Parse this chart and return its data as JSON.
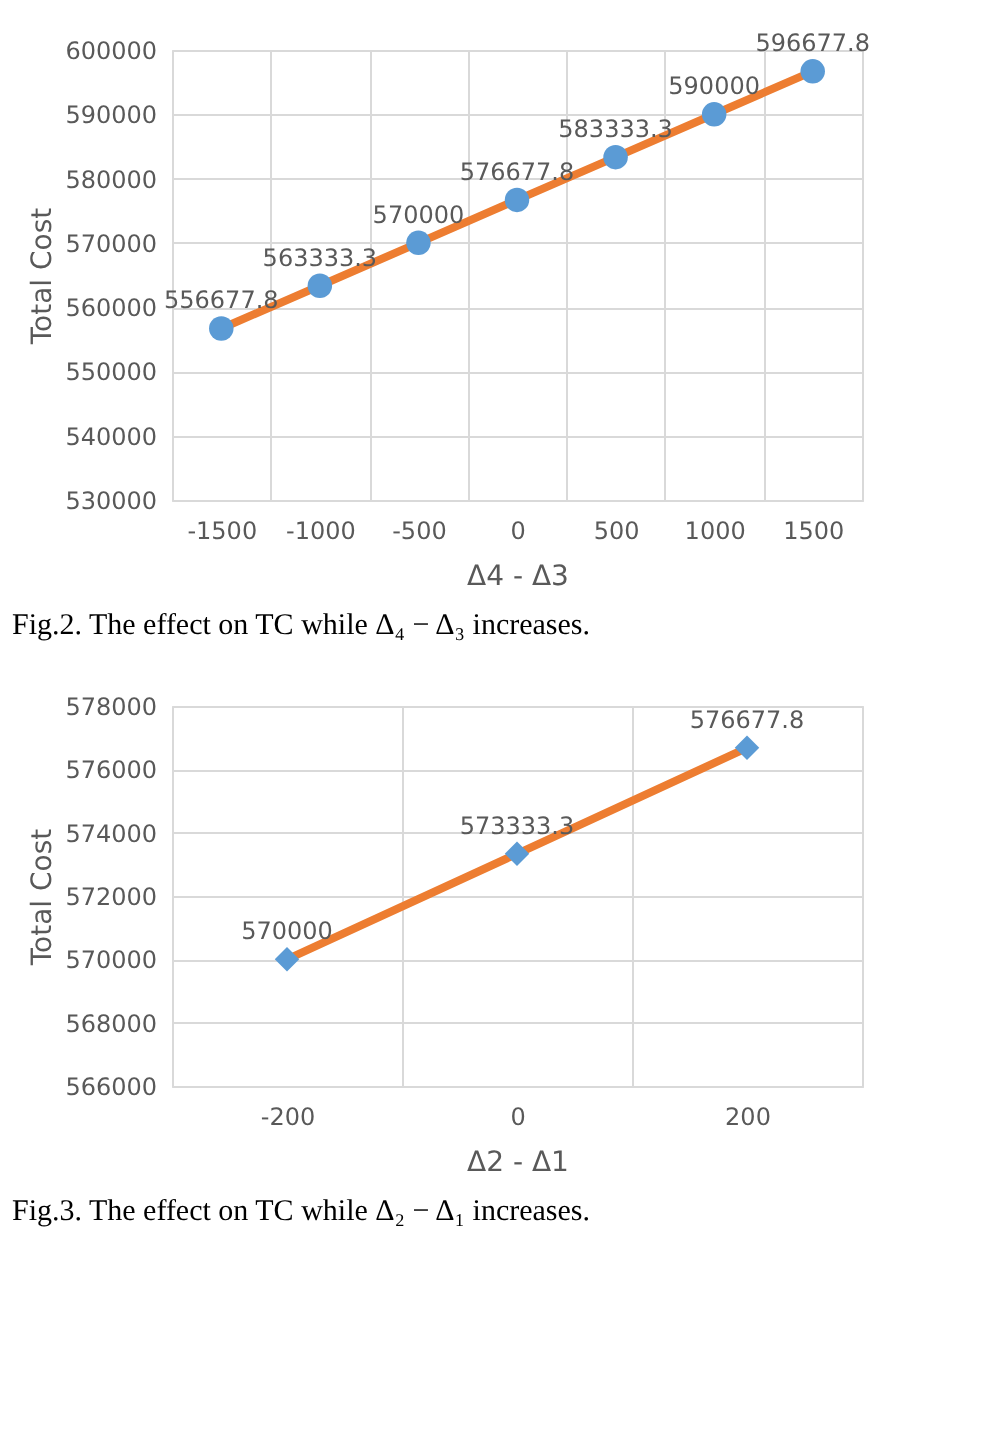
{
  "chart_data": [
    {
      "type": "line",
      "categories": [
        "-1500",
        "-1000",
        "-500",
        "0",
        "500",
        "1000",
        "1500"
      ],
      "xlabel": "Δ4 - Δ3",
      "ylabel": "Total Cost",
      "ylim": [
        530000,
        600000
      ],
      "yticks": [
        530000,
        540000,
        550000,
        560000,
        570000,
        580000,
        590000,
        600000
      ],
      "grid": true,
      "data_labels": true,
      "marker": "circle",
      "annotations": [
        "Fig.2.   The effect on TC while Δ₄ − Δ₃ increases."
      ],
      "series": [
        {
          "color": "#ed7d31",
          "colors": [
            "#5b9bd5",
            "#5b9bd5",
            "#5b9bd5",
            "#5b9bd5",
            "#5b9bd5",
            "#5b9bd5",
            "#5b9bd5"
          ],
          "values": [
            556677.8,
            563333.3,
            570000,
            576677.8,
            583333.3,
            590000,
            596677.8
          ]
        }
      ]
    },
    {
      "type": "line",
      "categories": [
        "-200",
        "0",
        "200"
      ],
      "xlabel": "Δ2 - Δ1",
      "ylabel": "Total Cost",
      "ylim": [
        566000,
        578000
      ],
      "yticks": [
        566000,
        568000,
        570000,
        572000,
        574000,
        576000,
        578000
      ],
      "grid": true,
      "data_labels": true,
      "marker": "diamond",
      "annotations": [
        "Fig.3.   The effect on TC while Δ₂ − Δ₁ increases."
      ],
      "series": [
        {
          "color": "#ed7d31",
          "colors": [
            "#5b9bd5",
            "#5b9bd5",
            "#5b9bd5"
          ],
          "values": [
            570000,
            573333.3,
            576677.8
          ]
        }
      ]
    }
  ]
}
